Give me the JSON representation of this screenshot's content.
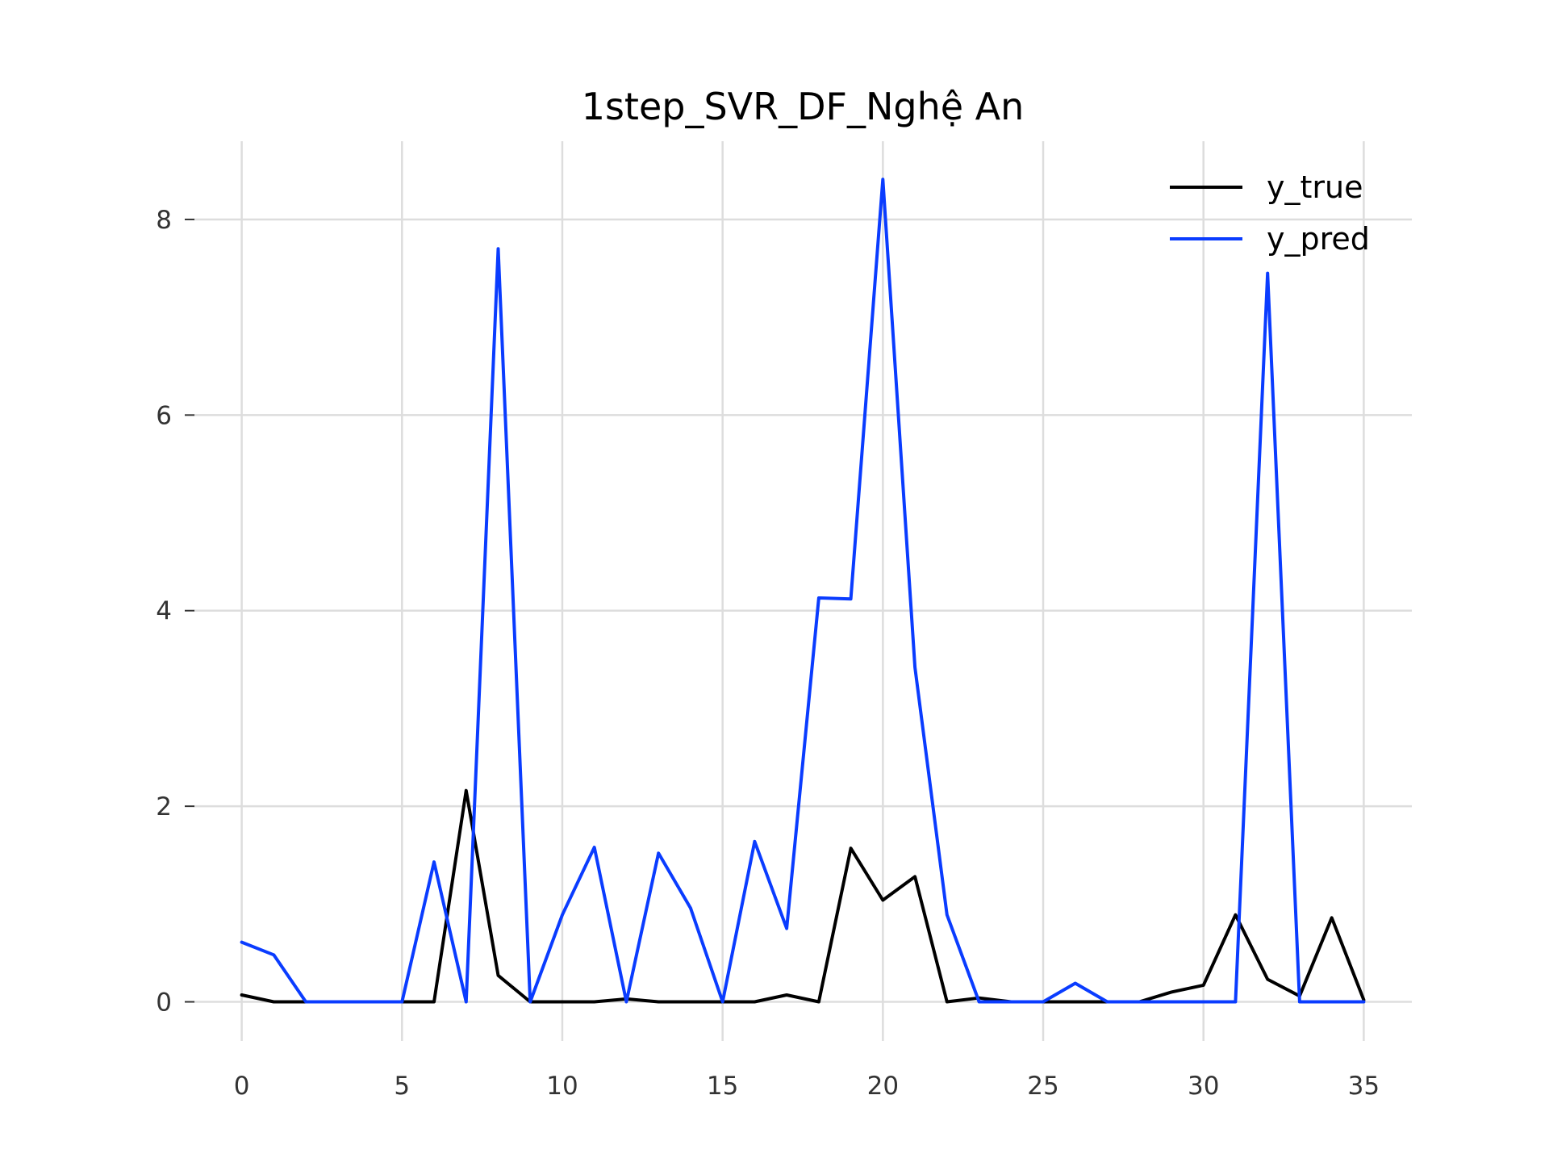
{
  "chart_data": {
    "type": "line",
    "title": "1step_SVR_DF_Nghệ An",
    "xlabel": "",
    "ylabel": "",
    "xlim": [
      -1.5,
      36.5
    ],
    "ylim": [
      -0.4,
      8.8
    ],
    "x_ticks": [
      0,
      5,
      10,
      15,
      20,
      25,
      30,
      35
    ],
    "y_ticks": [
      0,
      2,
      4,
      6,
      8
    ],
    "grid": true,
    "legend_position": "top-right",
    "x": [
      0,
      1,
      2,
      3,
      4,
      5,
      6,
      7,
      8,
      9,
      10,
      11,
      12,
      13,
      14,
      15,
      16,
      17,
      18,
      19,
      20,
      21,
      22,
      23,
      24,
      25,
      26,
      27,
      28,
      29,
      30,
      31,
      32,
      33,
      34,
      35
    ],
    "series": [
      {
        "name": "y_true",
        "color": "#000000",
        "values": [
          0.07,
          0.0,
          0.0,
          0.0,
          0.0,
          0.0,
          0.0,
          2.16,
          0.27,
          0.0,
          0.0,
          0.0,
          0.03,
          0.0,
          0.0,
          0.0,
          0.0,
          0.07,
          0.0,
          1.57,
          1.04,
          1.28,
          0.0,
          0.04,
          0.0,
          0.0,
          0.0,
          0.0,
          0.0,
          0.1,
          0.17,
          0.89,
          0.23,
          0.06,
          0.86,
          0.02
        ]
      },
      {
        "name": "y_pred",
        "color": "#0a3cff",
        "values": [
          0.61,
          0.48,
          0.0,
          0.0,
          0.0,
          0.0,
          1.43,
          0.0,
          7.7,
          0.0,
          0.89,
          1.58,
          0.0,
          1.52,
          0.96,
          0.0,
          1.64,
          0.75,
          4.13,
          4.12,
          8.41,
          3.42,
          0.89,
          0.0,
          0.0,
          0.0,
          0.19,
          0.0,
          0.0,
          0.0,
          0.0,
          0.0,
          7.45,
          0.0,
          0.0,
          0.0
        ]
      }
    ]
  }
}
